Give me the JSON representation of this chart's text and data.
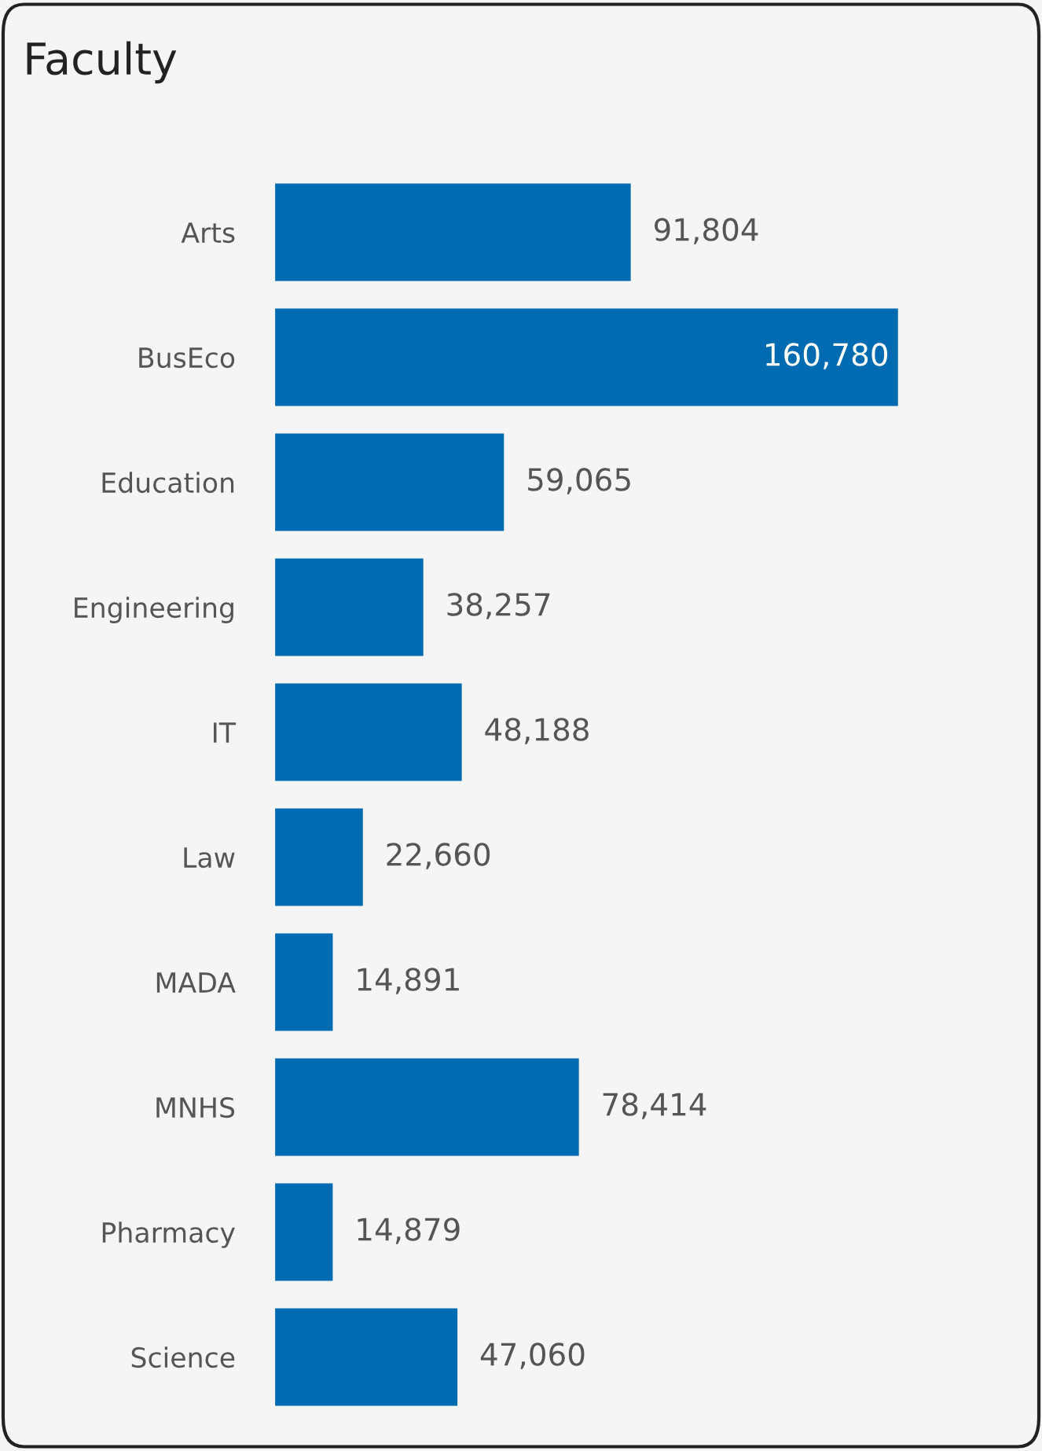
{
  "chart_data": {
    "type": "bar",
    "orientation": "horizontal",
    "title": "Faculty",
    "categories": [
      "Arts",
      "BusEco",
      "Education",
      "Engineering",
      "IT",
      "Law",
      "MADA",
      "MNHS",
      "Pharmacy",
      "Science"
    ],
    "values": [
      91804,
      160780,
      59065,
      38257,
      48188,
      22660,
      14891,
      78414,
      14879,
      47060
    ],
    "value_labels": [
      "91,804",
      "160,780",
      "59,065",
      "38,257",
      "48,188",
      "22,660",
      "14,891",
      "78,414",
      "14,879",
      "47,060"
    ],
    "color": "#006bb0",
    "grid": false,
    "legend": false
  }
}
